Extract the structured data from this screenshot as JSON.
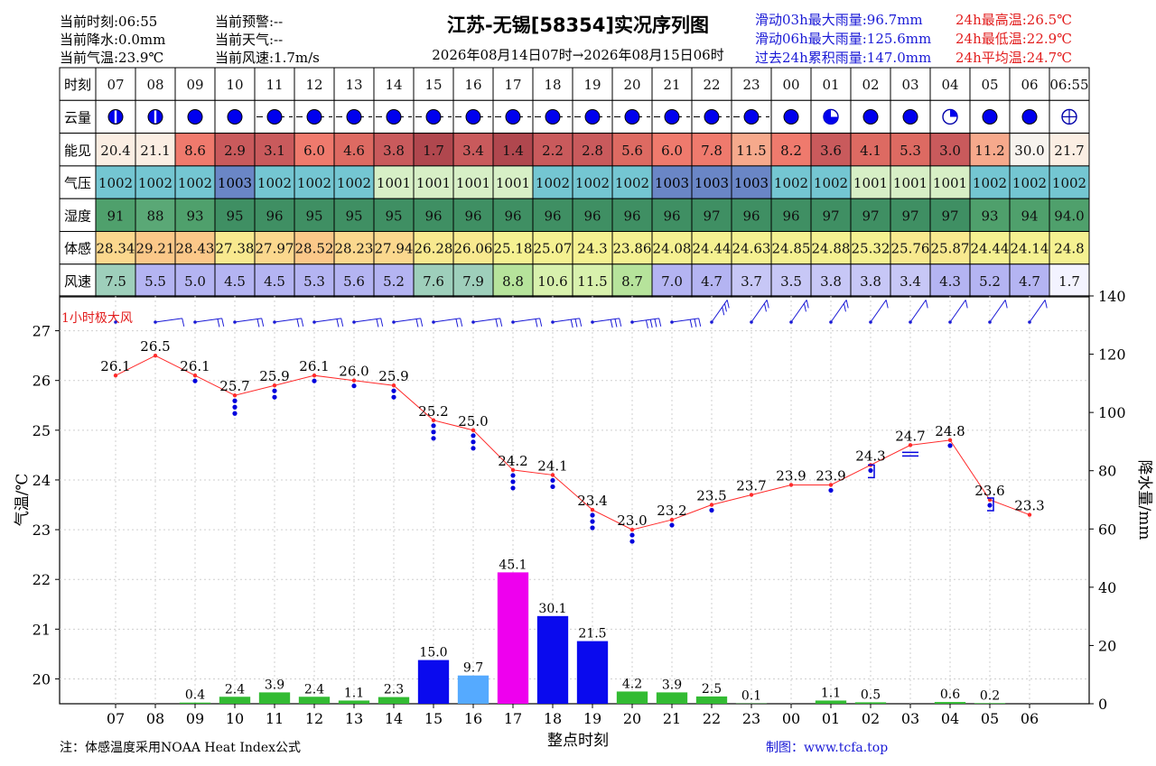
{
  "header": {
    "title": "江苏-无锡[58354]实况序列图",
    "subtitle": "2026年08月14日07时→2026年08月15日06时",
    "current": {
      "time": "当前时刻:06:55",
      "precip": "当前降水:0.0mm",
      "temp": "当前气温:23.9℃",
      "warning": "当前预警:--",
      "weather": "当前天气:--",
      "wind": "当前风速:1.7m/s"
    },
    "stats_blue": [
      "滑动03h最大雨量:96.7mm",
      "滑动06h最大雨量:125.6mm",
      "过去24h累积雨量:147.0mm"
    ],
    "stats_red": [
      "24h最高温:26.5℃",
      "24h最低温:22.9℃",
      "24h平均温:24.7℃"
    ]
  },
  "table": {
    "time_label": "时刻",
    "times": [
      "07",
      "08",
      "09",
      "10",
      "11",
      "12",
      "13",
      "14",
      "15",
      "16",
      "17",
      "18",
      "19",
      "20",
      "21",
      "22",
      "23",
      "00",
      "01",
      "02",
      "03",
      "04",
      "05",
      "06",
      "06:55"
    ],
    "row_labels": [
      "云量",
      "能见",
      "气压",
      "湿度",
      "体感",
      "风速"
    ],
    "cloud": [
      0.5,
      0.5,
      1,
      1,
      1,
      1,
      1,
      1,
      1,
      1,
      1,
      1,
      1,
      1,
      1,
      1,
      1,
      1,
      0.75,
      1,
      1,
      0.25,
      1,
      1,
      0
    ],
    "visibility": [
      "20.4",
      "21.1",
      "8.6",
      "2.9",
      "3.1",
      "6.0",
      "4.6",
      "3.8",
      "1.7",
      "3.4",
      "1.4",
      "2.2",
      "2.8",
      "5.6",
      "6.0",
      "7.8",
      "11.5",
      "8.2",
      "3.6",
      "4.1",
      "5.3",
      "3.0",
      "11.2",
      "30.0",
      "21.7"
    ],
    "pressure": [
      "1002",
      "1002",
      "1002",
      "1003",
      "1002",
      "1002",
      "1002",
      "1001",
      "1001",
      "1001",
      "1001",
      "1002",
      "1002",
      "1002",
      "1003",
      "1003",
      "1003",
      "1002",
      "1002",
      "1001",
      "1001",
      "1001",
      "1002",
      "1002",
      "1002"
    ],
    "humidity": [
      "91",
      "88",
      "93",
      "95",
      "96",
      "95",
      "95",
      "95",
      "96",
      "96",
      "96",
      "96",
      "96",
      "96",
      "96",
      "97",
      "96",
      "96",
      "97",
      "97",
      "97",
      "97",
      "93",
      "94",
      "94.0"
    ],
    "feels_like": [
      "28.34",
      "29.21",
      "28.43",
      "27.38",
      "27.97",
      "28.52",
      "28.23",
      "27.94",
      "26.28",
      "26.06",
      "25.18",
      "25.07",
      "24.3",
      "23.86",
      "24.08",
      "24.44",
      "24.63",
      "24.85",
      "24.88",
      "25.32",
      "25.76",
      "25.87",
      "24.44",
      "24.14",
      "24.8"
    ],
    "wind_speed": [
      "7.5",
      "5.5",
      "5.0",
      "4.5",
      "4.5",
      "5.3",
      "5.6",
      "5.2",
      "7.6",
      "7.9",
      "8.8",
      "10.6",
      "11.5",
      "8.7",
      "7.0",
      "4.7",
      "3.7",
      "3.5",
      "3.8",
      "3.8",
      "3.4",
      "4.3",
      "5.2",
      "4.7",
      "1.7"
    ]
  },
  "chart_data": {
    "type": "line",
    "title": "",
    "xlabel": "整点时刻",
    "ylabel": "气温/℃",
    "y2label": "降水量/mm",
    "gust_label": "1小时极大风",
    "categories": [
      "07",
      "08",
      "09",
      "10",
      "11",
      "12",
      "13",
      "14",
      "15",
      "16",
      "17",
      "18",
      "19",
      "20",
      "21",
      "22",
      "23",
      "00",
      "01",
      "02",
      "03",
      "04",
      "05",
      "06"
    ],
    "ylim": [
      19.5,
      27.7
    ],
    "y2lim": [
      0,
      140
    ],
    "yticks": [
      20,
      21,
      22,
      23,
      24,
      25,
      26,
      27
    ],
    "y2ticks": [
      0,
      20,
      40,
      60,
      80,
      100,
      120,
      140
    ],
    "series": [
      {
        "name": "",
        "type": "line",
        "values": [
          26.1,
          26.5,
          26.1,
          25.7,
          25.9,
          26.1,
          26.0,
          25.9,
          25.2,
          25.0,
          24.2,
          24.1,
          23.4,
          23.0,
          23.2,
          23.5,
          23.7,
          23.9,
          23.9,
          24.3,
          24.7,
          24.8,
          23.6,
          23.3
        ],
        "color": "#ff2a2a"
      },
      {
        "name": "",
        "type": "bar",
        "values": [
          0,
          0,
          0.4,
          2.4,
          3.9,
          2.4,
          1.1,
          2.3,
          15.0,
          9.7,
          45.1,
          30.1,
          21.5,
          4.2,
          3.9,
          2.5,
          0.1,
          0,
          1.1,
          0.5,
          0,
          0.6,
          0.2,
          0
        ]
      }
    ],
    "bar_labels": [
      "",
      "",
      "0.4",
      "2.4",
      "3.9",
      "2.4",
      "1.1",
      "2.3",
      "15.0",
      "9.7",
      "45.1",
      "30.1",
      "21.5",
      "4.2",
      "3.9",
      "2.5",
      "0.1",
      "",
      "1.1",
      "0.5",
      "",
      "0.6",
      "0.2",
      ""
    ],
    "temp_labels": [
      "26.1",
      "26.5",
      "26.1",
      "25.7",
      "25.9",
      "26.1",
      "26.0",
      "25.9",
      "25.2",
      "25.0",
      "24.2",
      "24.1",
      "23.4",
      "23.0",
      "23.2",
      "23.5",
      "23.7",
      "23.9",
      "23.9",
      "24.3",
      "24.7",
      "24.8",
      "23.6",
      "23.3"
    ],
    "weather_dots": [
      0,
      0,
      1,
      3,
      2,
      1,
      1,
      2,
      3,
      3,
      3,
      2,
      3,
      2,
      1,
      1,
      0,
      0,
      1,
      1,
      0,
      1,
      1,
      0
    ],
    "gust_speeds_mps": [
      0,
      8,
      10,
      10,
      10,
      10,
      12,
      12,
      14,
      14,
      14,
      18,
      18,
      22,
      16,
      16,
      12,
      10,
      10,
      8,
      8,
      8,
      8,
      8
    ],
    "colors": {
      "line": "#ff2a2a",
      "bar_light": "#33bb33",
      "bar_heavy": "#0a0aee",
      "bar_16": "#55aaff",
      "bar_17": "#ee00ee",
      "dots": "#0000dd",
      "wind_barb": "#1a1ad6",
      "stat_blue": "#1a1ad6",
      "stat_red": "#e21d1d"
    }
  },
  "footer": {
    "note": "注：体感温度采用NOAA Heat Index公式",
    "credit": "制图：www.tcfa.top"
  }
}
